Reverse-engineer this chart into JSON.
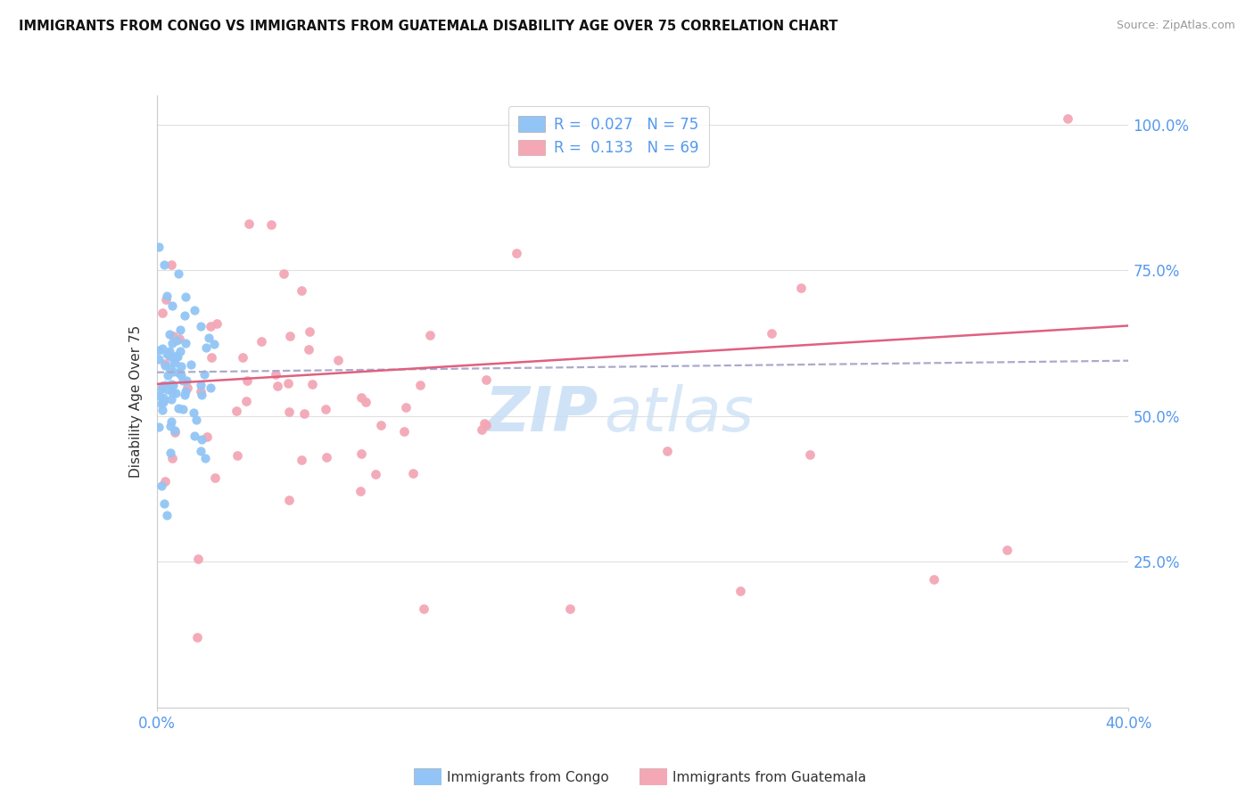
{
  "title": "IMMIGRANTS FROM CONGO VS IMMIGRANTS FROM GUATEMALA DISABILITY AGE OVER 75 CORRELATION CHART",
  "source": "Source: ZipAtlas.com",
  "ylabel": "Disability Age Over 75",
  "congo_R": 0.027,
  "congo_N": 75,
  "guatemala_R": 0.133,
  "guatemala_N": 69,
  "congo_color": "#92c5f5",
  "guatemala_color": "#f4a7b5",
  "congo_trend_color": "#aaaacc",
  "guatemala_trend_color": "#e06080",
  "background_color": "#ffffff",
  "grid_color": "#e0e0e0",
  "axis_label_color": "#5599ee",
  "watermark_text": "ZIP",
  "watermark_text2": "atlas",
  "watermark_color": "#c8def5",
  "x_min": 0.0,
  "x_max": 0.4,
  "y_min": 0.0,
  "y_max": 1.05
}
